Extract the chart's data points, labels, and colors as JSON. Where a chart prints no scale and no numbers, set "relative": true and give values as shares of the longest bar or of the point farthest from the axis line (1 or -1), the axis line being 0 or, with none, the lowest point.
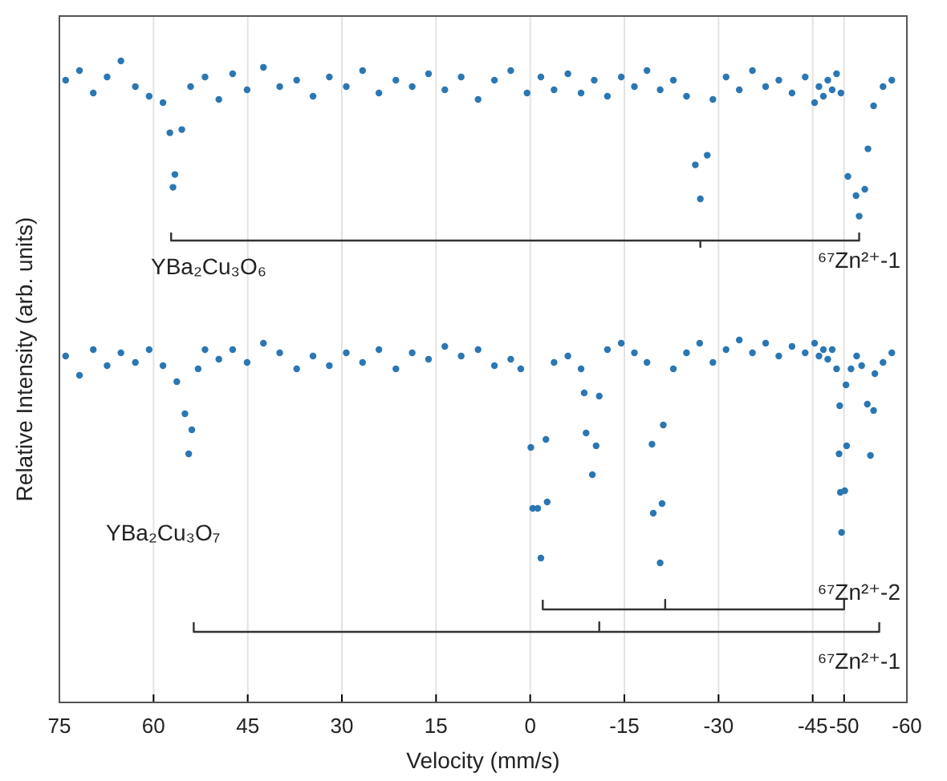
{
  "chart_data": {
    "type": "scatter",
    "xlabel": "Velocity (mm/s)",
    "ylabel": "Relative Intensity (arb. units)",
    "relative": true,
    "grid": "x",
    "xlim": [
      75,
      -60
    ],
    "xticks": [
      75,
      60,
      45,
      30,
      15,
      0,
      -15,
      -30,
      -45,
      -50,
      -60
    ],
    "annotations": [
      "YBa₂Cu₃O₆",
      "⁶⁷Zn²⁺-1",
      "YBa₂Cu₃O₇",
      "⁶⁷Zn²⁺-2",
      "⁶⁷Zn²⁺-1"
    ],
    "series": [
      {
        "marker": "circle",
        "color": "#2b77b3",
        "x": [
          74.0,
          71.8,
          69.6,
          67.4,
          65.2,
          62.9,
          60.7,
          58.5,
          57.4,
          56.9,
          56.6,
          55.5,
          54.1,
          51.8,
          49.6,
          47.4,
          45.1,
          42.5,
          39.9,
          37.2,
          34.6,
          32.0,
          29.3,
          26.7,
          24.1,
          21.4,
          18.8,
          16.2,
          13.6,
          11.0,
          8.3,
          5.7,
          3.1,
          0.5,
          -1.7,
          -3.8,
          -6.0,
          -8.1,
          -10.2,
          -12.3,
          -14.5,
          -16.6,
          -18.6,
          -20.7,
          -22.8,
          -24.9,
          -26.3,
          -27.1,
          -28.2,
          -29.1,
          -31.2,
          -33.3,
          -35.4,
          -37.5,
          -39.6,
          -41.7,
          -43.8,
          -45.3,
          -46.0,
          -46.7,
          -47.4,
          -48.1,
          -48.8,
          -49.5,
          -50.6,
          -51.9,
          -52.4,
          -53.3,
          -53.8,
          -54.7,
          -56.2,
          -57.6
        ],
        "values": [
          0.97,
          0.985,
          0.95,
          0.975,
          1.0,
          0.96,
          0.945,
          0.935,
          0.888,
          0.803,
          0.823,
          0.893,
          0.96,
          0.975,
          0.94,
          0.98,
          0.955,
          0.99,
          0.96,
          0.97,
          0.945,
          0.975,
          0.96,
          0.985,
          0.95,
          0.97,
          0.96,
          0.98,
          0.955,
          0.975,
          0.94,
          0.97,
          0.985,
          0.95,
          0.975,
          0.955,
          0.98,
          0.95,
          0.97,
          0.945,
          0.975,
          0.96,
          0.985,
          0.955,
          0.97,
          0.945,
          0.838,
          0.785,
          0.853,
          0.94,
          0.975,
          0.955,
          0.985,
          0.96,
          0.97,
          0.95,
          0.975,
          0.935,
          0.96,
          0.945,
          0.97,
          0.955,
          0.98,
          0.95,
          0.82,
          0.79,
          0.758,
          0.8,
          0.863,
          0.93,
          0.96,
          0.97
        ]
      },
      {
        "marker": "circle",
        "color": "#2b77b3",
        "x": [
          74.0,
          71.8,
          69.6,
          67.4,
          65.2,
          62.9,
          60.7,
          58.5,
          56.3,
          55.0,
          54.4,
          53.9,
          52.9,
          51.8,
          49.6,
          47.4,
          45.1,
          42.5,
          39.9,
          37.2,
          34.6,
          32.0,
          29.3,
          26.7,
          24.1,
          21.4,
          18.8,
          16.2,
          13.6,
          11.0,
          8.3,
          5.7,
          3.1,
          1.5,
          -0.1,
          -0.4,
          -1.2,
          -1.7,
          -2.5,
          -2.7,
          -3.8,
          -6.0,
          -8.1,
          -8.6,
          -8.9,
          -9.9,
          -10.5,
          -11.0,
          -12.3,
          -14.5,
          -16.6,
          -18.6,
          -19.4,
          -19.6,
          -20.7,
          -21.0,
          -21.2,
          -22.8,
          -24.9,
          -27.0,
          -29.1,
          -31.2,
          -33.3,
          -35.4,
          -37.5,
          -39.6,
          -41.7,
          -43.8,
          -45.3,
          -46.0,
          -46.7,
          -47.4,
          -48.1,
          -48.8,
          -49.2,
          -49.3,
          -49.4,
          -49.6,
          -50.1,
          -50.3,
          -50.4,
          -51.1,
          -52.0,
          -52.8,
          -53.7,
          -54.2,
          -54.7,
          -54.9,
          -56.2,
          -57.6
        ],
        "values": [
          0.54,
          0.51,
          0.55,
          0.525,
          0.545,
          0.53,
          0.55,
          0.525,
          0.5,
          0.45,
          0.3875,
          0.425,
          0.52,
          0.55,
          0.535,
          0.55,
          0.53,
          0.56,
          0.545,
          0.52,
          0.54,
          0.525,
          0.545,
          0.53,
          0.55,
          0.52,
          0.545,
          0.535,
          0.555,
          0.54,
          0.55,
          0.525,
          0.535,
          0.52,
          0.3975,
          0.3025,
          0.3025,
          0.225,
          0.41,
          0.3125,
          0.53,
          0.54,
          0.52,
          0.4825,
          0.42,
          0.355,
          0.4,
          0.4775,
          0.55,
          0.56,
          0.545,
          0.53,
          0.4025,
          0.295,
          0.2175,
          0.31,
          0.4325,
          0.52,
          0.545,
          0.56,
          0.53,
          0.55,
          0.565,
          0.545,
          0.56,
          0.54,
          0.555,
          0.545,
          0.56,
          0.54,
          0.55,
          0.535,
          0.55,
          0.52,
          0.3875,
          0.4625,
          0.3275,
          0.265,
          0.33,
          0.495,
          0.4,
          0.52,
          0.54,
          0.525,
          0.465,
          0.385,
          0.455,
          0.5125,
          0.53,
          0.545
        ]
      },
      {
        "type": "line",
        "marker": "none",
        "color": "#333333",
        "x": [
          57.2,
          57.2,
          -27.1,
          -27.1,
          -27.1,
          -52.4,
          -52.4
        ],
        "values": [
          0.7325,
          0.72,
          0.72,
          0.71,
          0.72,
          0.72,
          0.7325
        ]
      },
      {
        "type": "line",
        "marker": "none",
        "color": "#333333",
        "x": [
          -2.0,
          -2.0,
          -21.5,
          -21.5,
          -21.5,
          -50.0,
          -50.0
        ],
        "values": [
          0.16,
          0.145,
          0.145,
          0.16,
          0.145,
          0.145,
          0.16
        ]
      },
      {
        "type": "line",
        "marker": "none",
        "color": "#333333",
        "x": [
          53.6,
          53.6,
          -11.0,
          -11.0,
          -11.0,
          -55.6,
          -55.6
        ],
        "values": [
          0.125,
          0.11,
          0.11,
          0.125,
          0.11,
          0.11,
          0.125
        ]
      }
    ]
  }
}
